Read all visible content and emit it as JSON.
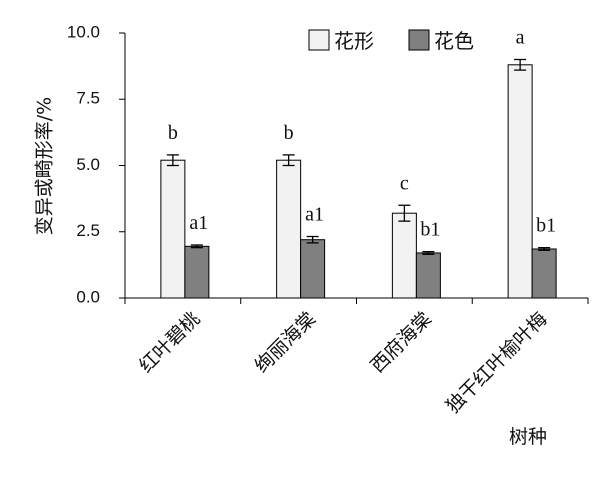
{
  "chart_data": {
    "type": "bar",
    "title": "",
    "xlabel": "树种",
    "ylabel": "变异或畸形率/%",
    "ylim": [
      0,
      10
    ],
    "yticks": [
      "0.0",
      "2.5",
      "5.0",
      "7.5",
      "10.0"
    ],
    "ytick_values": [
      0,
      2.5,
      5,
      7.5,
      10
    ],
    "grid": false,
    "legend_position": "top-right",
    "categories": [
      "红叶碧桃",
      "绚丽海棠",
      "西府海棠",
      "独干红叶榆叶梅"
    ],
    "series": [
      {
        "name": "花形",
        "color": "#f2f2f2",
        "values": [
          5.2,
          5.2,
          3.2,
          8.8
        ],
        "errors": [
          0.2,
          0.2,
          0.3,
          0.2
        ],
        "labels": [
          "b",
          "b",
          "c",
          "a"
        ]
      },
      {
        "name": "花色",
        "color": "#808080",
        "values": [
          1.95,
          2.2,
          1.7,
          1.85
        ],
        "errors": [
          0.05,
          0.12,
          0.05,
          0.05
        ],
        "labels": [
          "a1",
          "a1",
          "b1",
          "b1"
        ]
      }
    ]
  }
}
